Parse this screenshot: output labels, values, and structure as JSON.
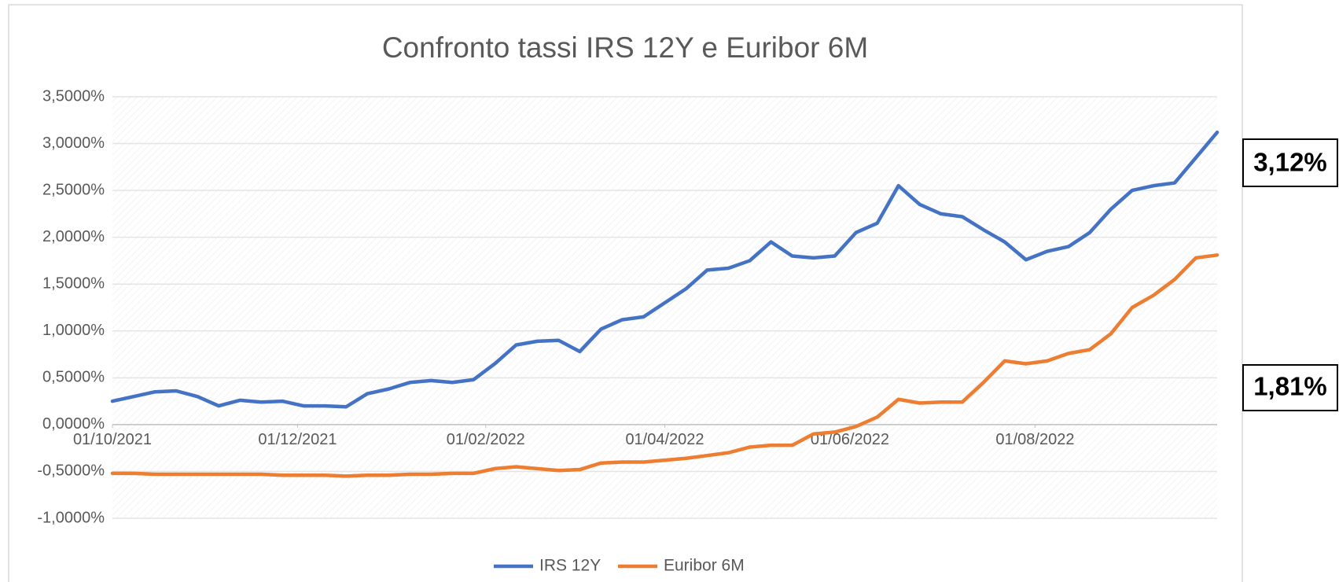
{
  "chart_data": {
    "type": "line",
    "title": "Confronto tassi IRS 12Y e Euribor 6M",
    "x": [
      "01/10/2021",
      "08/10/2021",
      "15/10/2021",
      "22/10/2021",
      "29/10/2021",
      "05/11/2021",
      "12/11/2021",
      "19/11/2021",
      "26/11/2021",
      "03/12/2021",
      "10/12/2021",
      "17/12/2021",
      "24/12/2021",
      "31/12/2021",
      "07/01/2022",
      "14/01/2022",
      "21/01/2022",
      "28/01/2022",
      "04/02/2022",
      "11/02/2022",
      "18/02/2022",
      "25/02/2022",
      "04/03/2022",
      "11/03/2022",
      "18/03/2022",
      "25/03/2022",
      "01/04/2022",
      "08/04/2022",
      "15/04/2022",
      "22/04/2022",
      "29/04/2022",
      "06/05/2022",
      "13/05/2022",
      "20/05/2022",
      "27/05/2022",
      "03/06/2022",
      "10/06/2022",
      "17/06/2022",
      "24/06/2022",
      "01/07/2022",
      "08/07/2022",
      "15/07/2022",
      "22/07/2022",
      "29/07/2022",
      "05/08/2022",
      "12/08/2022",
      "19/08/2022",
      "26/08/2022",
      "02/09/2022",
      "09/09/2022",
      "16/09/2022",
      "23/09/2022",
      "30/09/2022"
    ],
    "series": [
      {
        "name": "IRS 12Y",
        "color": "#4472c4",
        "values": [
          0.25,
          0.3,
          0.35,
          0.36,
          0.3,
          0.2,
          0.26,
          0.24,
          0.25,
          0.2,
          0.2,
          0.19,
          0.33,
          0.38,
          0.45,
          0.47,
          0.45,
          0.48,
          0.65,
          0.85,
          0.89,
          0.9,
          0.78,
          1.02,
          1.12,
          1.15,
          1.3,
          1.45,
          1.65,
          1.67,
          1.75,
          1.95,
          1.8,
          1.78,
          1.8,
          2.05,
          2.15,
          2.55,
          2.35,
          2.25,
          2.22,
          2.08,
          1.95,
          1.76,
          1.85,
          1.9,
          2.05,
          2.3,
          2.5,
          2.55,
          2.58,
          2.85,
          3.12
        ]
      },
      {
        "name": "Euribor 6M",
        "color": "#ed7d31",
        "values": [
          -0.52,
          -0.52,
          -0.53,
          -0.53,
          -0.53,
          -0.53,
          -0.53,
          -0.53,
          -0.54,
          -0.54,
          -0.54,
          -0.55,
          -0.54,
          -0.54,
          -0.53,
          -0.53,
          -0.52,
          -0.52,
          -0.47,
          -0.45,
          -0.47,
          -0.49,
          -0.48,
          -0.41,
          -0.4,
          -0.4,
          -0.38,
          -0.36,
          -0.33,
          -0.3,
          -0.24,
          -0.22,
          -0.22,
          -0.1,
          -0.08,
          -0.02,
          0.08,
          0.27,
          0.23,
          0.24,
          0.24,
          0.45,
          0.68,
          0.65,
          0.68,
          0.76,
          0.8,
          0.97,
          1.25,
          1.38,
          1.55,
          1.78,
          1.81
        ]
      }
    ],
    "xlim": [
      "01/10/2021",
      "30/09/2022"
    ],
    "xticks": [
      "01/10/2021",
      "01/12/2021",
      "01/02/2022",
      "01/04/2022",
      "01/06/2022",
      "01/08/2022"
    ],
    "ylim": [
      -1,
      3.5
    ],
    "yticks": [
      {
        "value": -1,
        "label": "-1,0000%"
      },
      {
        "value": -0.5,
        "label": "-0,5000%"
      },
      {
        "value": 0,
        "label": "0,0000%"
      },
      {
        "value": 0.5,
        "label": "0,5000%"
      },
      {
        "value": 1,
        "label": "1,0000%"
      },
      {
        "value": 1.5,
        "label": "1,5000%"
      },
      {
        "value": 2,
        "label": "2,0000%"
      },
      {
        "value": 2.5,
        "label": "2,5000%"
      },
      {
        "value": 3,
        "label": "3,0000%"
      },
      {
        "value": 3.5,
        "label": "3,5000%"
      }
    ],
    "grid": true,
    "legend": "bottom",
    "annotations": [
      "3,12%",
      "1,81%"
    ]
  }
}
